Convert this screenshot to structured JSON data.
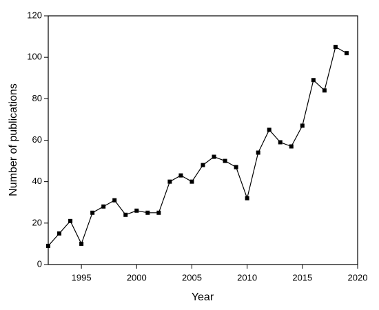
{
  "chart_data": {
    "type": "line",
    "x_label": "Year",
    "y_label": "Number of publications",
    "x": [
      1992,
      1993,
      1994,
      1995,
      1996,
      1997,
      1998,
      1999,
      2000,
      2001,
      2002,
      2003,
      2004,
      2005,
      2006,
      2007,
      2008,
      2009,
      2010,
      2011,
      2012,
      2013,
      2014,
      2015,
      2016,
      2017,
      2018,
      2019
    ],
    "series": [
      {
        "color": "#000000",
        "values": [
          9,
          15,
          21,
          10,
          25,
          28,
          31,
          24,
          26,
          25,
          25,
          40,
          43,
          40,
          48,
          52,
          50,
          47,
          32,
          54,
          65,
          59,
          57,
          67,
          89,
          84,
          105,
          102
        ]
      }
    ],
    "xlim": [
      1992,
      2020
    ],
    "xticks": [
      1995,
      2000,
      2005,
      2010,
      2015,
      2020
    ],
    "ylim": [
      0,
      120
    ],
    "yticks": [
      0,
      20,
      40,
      60,
      80,
      100,
      120
    ]
  }
}
